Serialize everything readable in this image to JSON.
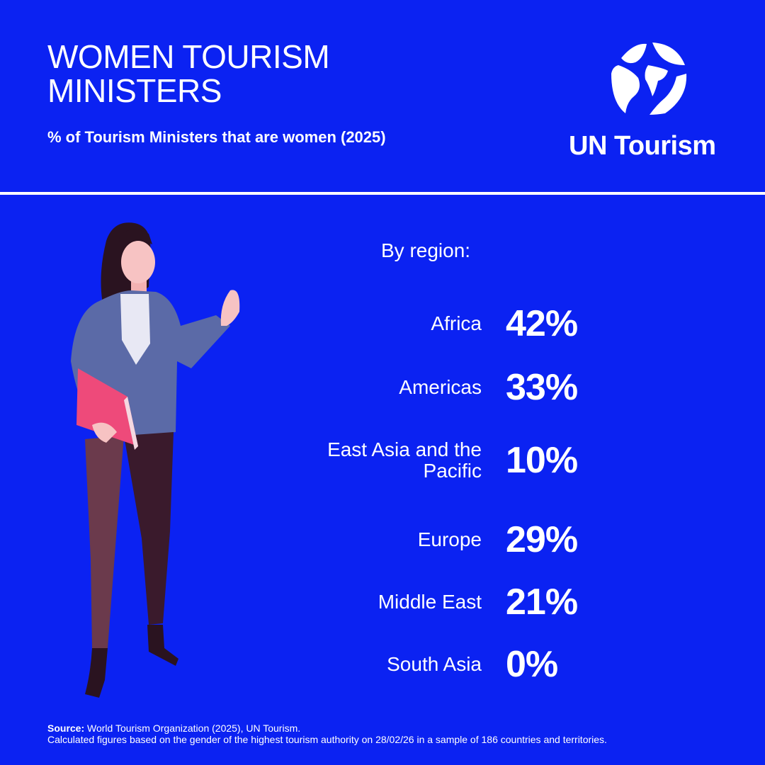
{
  "header": {
    "title_lines": [
      "WOMEN TOURISM",
      "MINISTERS"
    ],
    "subtitle": "% of Tourism Ministers that are women (2025)"
  },
  "logo": {
    "text": "UN Tourism"
  },
  "regions": {
    "heading": "By region:",
    "rows": [
      {
        "label": "Africa",
        "value": "42%"
      },
      {
        "label": "Americas",
        "value": "33%"
      },
      {
        "label": "East Asia and the Pacific",
        "value": "10%"
      },
      {
        "label": "Europe",
        "value": "29%"
      },
      {
        "label": "Middle East",
        "value": "21%"
      },
      {
        "label": "South Asia",
        "value": "0%"
      }
    ]
  },
  "footer": {
    "source_label": "Source:",
    "source": "World Tourism Organization (2025), UN Tourism.",
    "note": "Calculated figures based on the gender of the highest tourism authority on 28/02/26 in a sample of 186 countries and territories."
  }
}
